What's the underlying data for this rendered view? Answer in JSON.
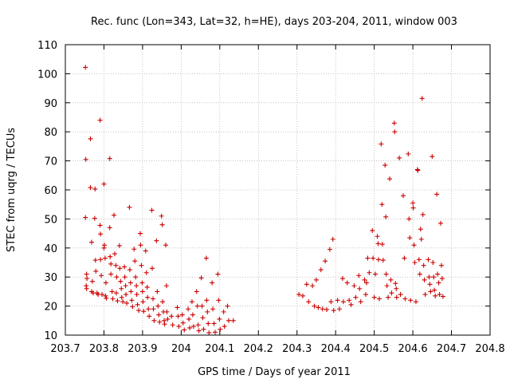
{
  "chart_data": {
    "type": "scatter",
    "title": "Rec. func (Lon=343, Lat=32, h=HE), days 203-204, 2011, window 003",
    "xlabel": "GPS time / Days of year 2011",
    "ylabel": "STEC from uqrg / TECUs",
    "xlim": [
      203.7,
      204.8
    ],
    "ylim": [
      10,
      110
    ],
    "x_ticks": [
      203.7,
      203.8,
      203.9,
      204,
      204.1,
      204.2,
      204.3,
      204.4,
      204.5,
      204.6,
      204.7,
      204.8
    ],
    "x_tick_labels": [
      "203.7",
      "203.8",
      "203.9",
      "204",
      "204.1",
      "204.2",
      "204.3",
      "204.4",
      "204.5",
      "204.6",
      "204.7",
      "204.8"
    ],
    "y_ticks": [
      10,
      20,
      30,
      40,
      50,
      60,
      70,
      80,
      90,
      100,
      110
    ],
    "y_tick_labels": [
      "10",
      "20",
      "30",
      "40",
      "50",
      "60",
      "70",
      "80",
      "90",
      "100",
      "110"
    ],
    "grid": true,
    "legend": "none",
    "marker": "plus",
    "color": "#cc0000",
    "points": [
      [
        203.752,
        102.2
      ],
      [
        203.753,
        70.5
      ],
      [
        203.752,
        50.5
      ],
      [
        203.755,
        31
      ],
      [
        203.756,
        29.5
      ],
      [
        203.754,
        27
      ],
      [
        203.755,
        26
      ],
      [
        203.765,
        77.6
      ],
      [
        203.765,
        60.8
      ],
      [
        203.768,
        42
      ],
      [
        203.77,
        28.5
      ],
      [
        203.768,
        25
      ],
      [
        203.772,
        24.5
      ],
      [
        203.777,
        60.3
      ],
      [
        203.776,
        50.2
      ],
      [
        203.778,
        35.8
      ],
      [
        203.779,
        32
      ],
      [
        203.782,
        24.5
      ],
      [
        203.785,
        24
      ],
      [
        203.79,
        84
      ],
      [
        203.79,
        47.8
      ],
      [
        203.791,
        44.8
      ],
      [
        203.791,
        36
      ],
      [
        203.793,
        30.5
      ],
      [
        203.795,
        24
      ],
      [
        203.8,
        62
      ],
      [
        203.801,
        41
      ],
      [
        203.8,
        40
      ],
      [
        203.803,
        36.5
      ],
      [
        203.805,
        28
      ],
      [
        203.804,
        23.5
      ],
      [
        203.806,
        22.7
      ],
      [
        203.815,
        70.8
      ],
      [
        203.815,
        47
      ],
      [
        203.816,
        37
      ],
      [
        203.818,
        34.5
      ],
      [
        203.818,
        31
      ],
      [
        203.821,
        25
      ],
      [
        203.823,
        22.5
      ],
      [
        203.826,
        51.3
      ],
      [
        203.828,
        38
      ],
      [
        203.831,
        34
      ],
      [
        203.833,
        30
      ],
      [
        203.832,
        24.5
      ],
      [
        203.835,
        21.8
      ],
      [
        203.84,
        40.8
      ],
      [
        203.841,
        33
      ],
      [
        203.843,
        28.5
      ],
      [
        203.845,
        26
      ],
      [
        203.846,
        23
      ],
      [
        203.849,
        21.5
      ],
      [
        203.853,
        33.5
      ],
      [
        203.854,
        30
      ],
      [
        203.856,
        27
      ],
      [
        203.857,
        24
      ],
      [
        203.859,
        21
      ],
      [
        203.866,
        54
      ],
      [
        203.867,
        32.5
      ],
      [
        203.869,
        28
      ],
      [
        203.87,
        25
      ],
      [
        203.872,
        22
      ],
      [
        203.874,
        19.8
      ],
      [
        203.878,
        39.6
      ],
      [
        203.88,
        35.5
      ],
      [
        203.882,
        30
      ],
      [
        203.884,
        27
      ],
      [
        203.885,
        24
      ],
      [
        203.887,
        20.5
      ],
      [
        203.89,
        18.5
      ],
      [
        203.894,
        45
      ],
      [
        203.895,
        41
      ],
      [
        203.897,
        34
      ],
      [
        203.899,
        28
      ],
      [
        203.9,
        25
      ],
      [
        203.901,
        21.5
      ],
      [
        203.903,
        18.2
      ],
      [
        203.908,
        39
      ],
      [
        203.91,
        31.5
      ],
      [
        203.912,
        26.5
      ],
      [
        203.913,
        23
      ],
      [
        203.915,
        19
      ],
      [
        203.917,
        16.5
      ],
      [
        203.924,
        53
      ],
      [
        203.925,
        33
      ],
      [
        203.927,
        22.5
      ],
      [
        203.928,
        19
      ],
      [
        203.93,
        15
      ],
      [
        203.936,
        42.5
      ],
      [
        203.938,
        25
      ],
      [
        203.94,
        20
      ],
      [
        203.942,
        17
      ],
      [
        203.944,
        14.5
      ],
      [
        203.949,
        51
      ],
      [
        203.951,
        48
      ],
      [
        203.952,
        21.5
      ],
      [
        203.954,
        18
      ],
      [
        203.956,
        15
      ],
      [
        203.957,
        13.8
      ],
      [
        203.96,
        41
      ],
      [
        203.962,
        27
      ],
      [
        203.963,
        18
      ],
      [
        203.965,
        15.5
      ],
      [
        203.975,
        16.5
      ],
      [
        203.978,
        13.5
      ],
      [
        203.99,
        19.5
      ],
      [
        203.992,
        16.5
      ],
      [
        203.994,
        13
      ],
      [
        204.003,
        17
      ],
      [
        204.005,
        14.2
      ],
      [
        204.008,
        11.8
      ],
      [
        204.018,
        19
      ],
      [
        204.02,
        15.5
      ],
      [
        204.022,
        12.5
      ],
      [
        204.028,
        21.5
      ],
      [
        204.03,
        17
      ],
      [
        204.032,
        13
      ],
      [
        204.04,
        25
      ],
      [
        204.042,
        20
      ],
      [
        204.044,
        13.5
      ],
      [
        204.046,
        11.5
      ],
      [
        204.052,
        29.7
      ],
      [
        204.054,
        20
      ],
      [
        204.056,
        16
      ],
      [
        204.058,
        12
      ],
      [
        204.065,
        36.5
      ],
      [
        204.066,
        22
      ],
      [
        204.068,
        18
      ],
      [
        204.07,
        14
      ],
      [
        204.072,
        10.8
      ],
      [
        204.08,
        28
      ],
      [
        204.082,
        19
      ],
      [
        204.085,
        14
      ],
      [
        204.088,
        11
      ],
      [
        204.095,
        31
      ],
      [
        204.097,
        22
      ],
      [
        204.099,
        15.5
      ],
      [
        204.101,
        12
      ],
      [
        204.11,
        18
      ],
      [
        204.112,
        13
      ],
      [
        204.12,
        20
      ],
      [
        204.123,
        15
      ],
      [
        204.135,
        15
      ],
      [
        204.305,
        24
      ],
      [
        204.315,
        23.5
      ],
      [
        204.325,
        27.5
      ],
      [
        204.33,
        21.5
      ],
      [
        204.34,
        27
      ],
      [
        204.345,
        20
      ],
      [
        204.35,
        29
      ],
      [
        204.355,
        19.5
      ],
      [
        204.362,
        32.5
      ],
      [
        204.366,
        19
      ],
      [
        204.373,
        35.5
      ],
      [
        204.377,
        18.8
      ],
      [
        204.385,
        39.5
      ],
      [
        204.388,
        21.5
      ],
      [
        204.393,
        43
      ],
      [
        204.395,
        18.5
      ],
      [
        204.405,
        22
      ],
      [
        204.41,
        19
      ],
      [
        204.418,
        29.5
      ],
      [
        204.42,
        21.5
      ],
      [
        204.43,
        28
      ],
      [
        204.435,
        22
      ],
      [
        204.44,
        20.5
      ],
      [
        204.448,
        27
      ],
      [
        204.452,
        23
      ],
      [
        204.46,
        30.5
      ],
      [
        204.462,
        26
      ],
      [
        204.465,
        21.5
      ],
      [
        204.475,
        29
      ],
      [
        204.478,
        24
      ],
      [
        204.48,
        28
      ],
      [
        204.483,
        36.5
      ],
      [
        204.487,
        31.5
      ],
      [
        204.495,
        46
      ],
      [
        204.497,
        36.5
      ],
      [
        204.5,
        23
      ],
      [
        204.503,
        31
      ],
      [
        204.508,
        44
      ],
      [
        204.51,
        41.5
      ],
      [
        204.511,
        36
      ],
      [
        204.513,
        22.5
      ],
      [
        204.518,
        75.8
      ],
      [
        204.52,
        55
      ],
      [
        204.521,
        41.3
      ],
      [
        204.523,
        35.8
      ],
      [
        204.528,
        68.5
      ],
      [
        204.53,
        50.7
      ],
      [
        204.531,
        31
      ],
      [
        204.533,
        27
      ],
      [
        204.536,
        23
      ],
      [
        204.54,
        63.8
      ],
      [
        204.543,
        29
      ],
      [
        204.545,
        24.5
      ],
      [
        204.552,
        83
      ],
      [
        204.553,
        80
      ],
      [
        204.555,
        27.8
      ],
      [
        204.557,
        26
      ],
      [
        204.558,
        23
      ],
      [
        204.565,
        71
      ],
      [
        204.568,
        24
      ],
      [
        204.575,
        58
      ],
      [
        204.578,
        36.5
      ],
      [
        204.58,
        22.5
      ],
      [
        204.588,
        72.4
      ],
      [
        204.59,
        50
      ],
      [
        204.592,
        43.5
      ],
      [
        204.594,
        22
      ],
      [
        204.6,
        55.5
      ],
      [
        204.601,
        53.8
      ],
      [
        204.603,
        41
      ],
      [
        204.605,
        35
      ],
      [
        204.608,
        21.5
      ],
      [
        204.612,
        67
      ],
      [
        204.613,
        66.7
      ],
      [
        204.616,
        36
      ],
      [
        204.618,
        31
      ],
      [
        204.62,
        46.5
      ],
      [
        204.622,
        43
      ],
      [
        204.624,
        91.5
      ],
      [
        204.626,
        51.5
      ],
      [
        204.628,
        34
      ],
      [
        204.63,
        29
      ],
      [
        204.632,
        24
      ],
      [
        204.64,
        36
      ],
      [
        204.642,
        30
      ],
      [
        204.644,
        27.5
      ],
      [
        204.646,
        25
      ],
      [
        204.65,
        71.5
      ],
      [
        204.652,
        35
      ],
      [
        204.654,
        30
      ],
      [
        204.656,
        25.5
      ],
      [
        204.658,
        23.5
      ],
      [
        204.662,
        58.5
      ],
      [
        204.664,
        31
      ],
      [
        204.667,
        28
      ],
      [
        204.669,
        24
      ],
      [
        204.672,
        48.5
      ],
      [
        204.674,
        34
      ],
      [
        204.676,
        29.5
      ],
      [
        204.678,
        23.3
      ]
    ]
  }
}
